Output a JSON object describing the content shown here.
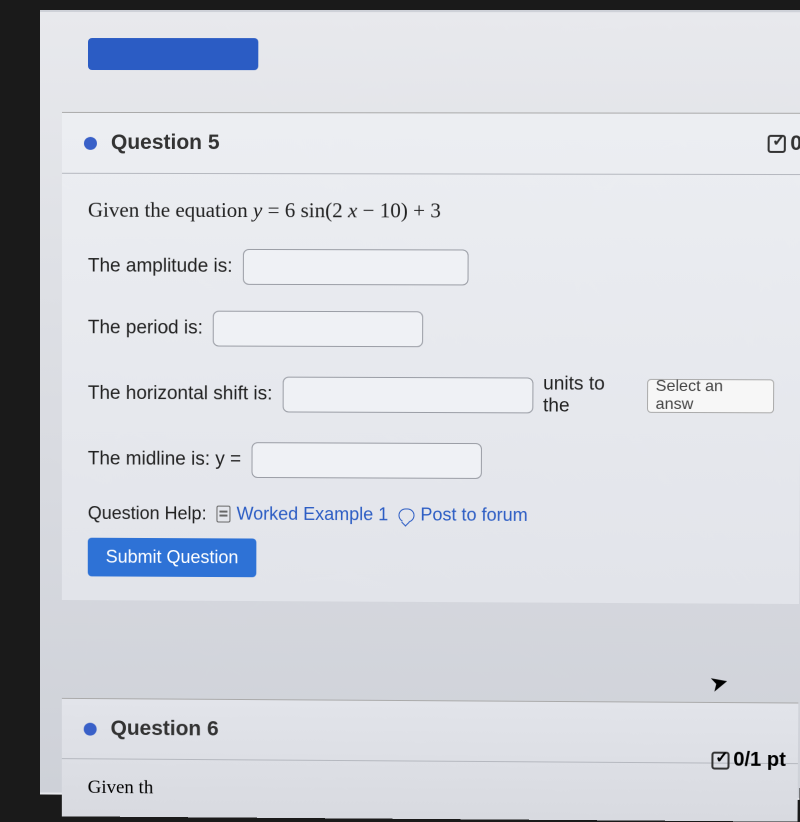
{
  "question5": {
    "title": "Question 5",
    "score_partial": "0",
    "prompt_prefix": "Given the equation ",
    "equation_y": "y",
    "equation_eq": " = 6 sin(2",
    "equation_x": "x",
    "equation_rest": " − 10) + 3",
    "fields": {
      "amplitude_label": "The amplitude is:",
      "period_label": "The period is:",
      "hshift_label": "The horizontal shift is:",
      "hshift_suffix": "units to the",
      "direction_placeholder": "Select an answ",
      "midline_label": "The midline is: y ="
    },
    "help": {
      "label": "Question Help:",
      "worked_example": "Worked Example 1",
      "post_forum": "Post to forum"
    },
    "submit_label": "Submit Question"
  },
  "question6": {
    "title": "Question 6",
    "score": "0/1 pt",
    "body_partial": "Given th"
  }
}
